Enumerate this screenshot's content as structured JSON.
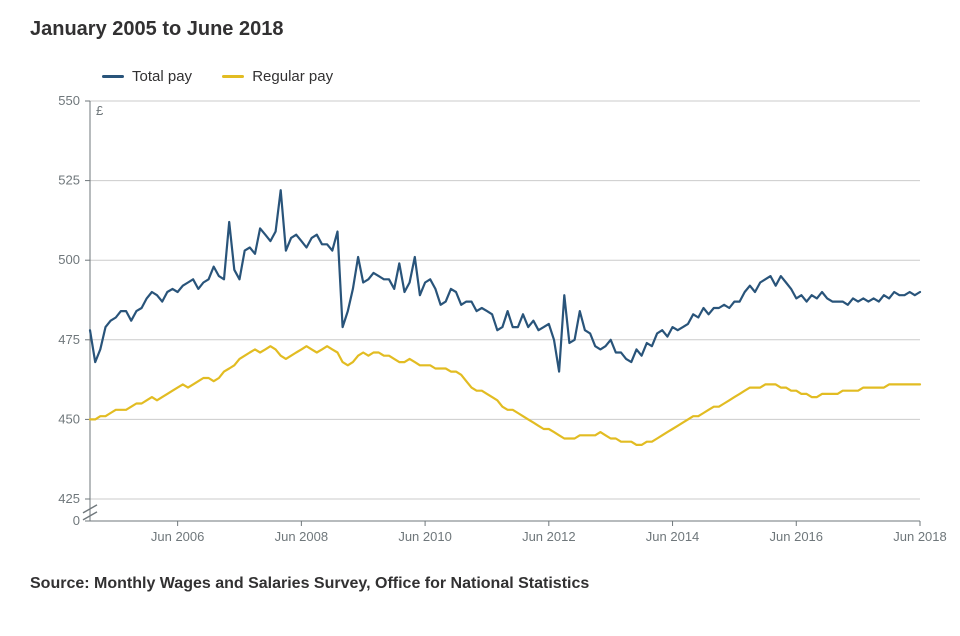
{
  "title": "January 2005 to June 2018",
  "source_label": "Source: Monthly Wages and Salaries Survey, Office for National Statistics",
  "chart": {
    "type": "line",
    "y_unit_label": "£",
    "background_color": "#ffffff",
    "grid_color": "#cbcbcb",
    "axis_color": "#6f777b",
    "tick_fontsize": 13,
    "ylim": [
      0,
      550
    ],
    "y_axis_break": {
      "from": 0,
      "to": 425
    },
    "y_ticks": [
      0,
      425,
      450,
      475,
      500,
      525,
      550
    ],
    "x_ticks": [
      "Jun 2006",
      "Jun 2008",
      "Jun 2010",
      "Jun 2012",
      "Jun 2014",
      "Jun 2016",
      "Jun 2018"
    ],
    "n_points": 162,
    "legend": [
      {
        "label": "Total pay",
        "color": "#29547a"
      },
      {
        "label": "Regular pay",
        "color": "#e2bc22"
      }
    ],
    "series": [
      {
        "name": "Total pay",
        "color": "#29547a",
        "values": [
          478,
          468,
          472,
          479,
          481,
          482,
          484,
          484,
          481,
          484,
          485,
          488,
          490,
          489,
          487,
          490,
          491,
          490,
          492,
          493,
          494,
          491,
          493,
          494,
          498,
          495,
          494,
          512,
          497,
          494,
          503,
          504,
          502,
          510,
          508,
          506,
          509,
          522,
          503,
          507,
          508,
          506,
          504,
          507,
          508,
          505,
          505,
          503,
          509,
          479,
          484,
          491,
          501,
          493,
          494,
          496,
          495,
          494,
          494,
          491,
          499,
          490,
          493,
          501,
          489,
          493,
          494,
          491,
          486,
          487,
          491,
          490,
          486,
          487,
          487,
          484,
          485,
          484,
          483,
          478,
          479,
          484,
          479,
          479,
          483,
          479,
          481,
          478,
          479,
          480,
          475,
          465,
          489,
          474,
          475,
          484,
          478,
          477,
          473,
          472,
          473,
          475,
          471,
          471,
          469,
          468,
          472,
          470,
          474,
          473,
          477,
          478,
          476,
          479,
          478,
          479,
          480,
          483,
          482,
          485,
          483,
          485,
          485,
          486,
          485,
          487,
          487,
          490,
          492,
          490,
          493,
          494,
          495,
          492,
          495,
          493,
          491,
          488,
          489,
          487,
          489,
          488,
          490,
          488,
          487,
          487,
          487,
          486,
          488,
          487,
          488,
          487,
          488,
          487,
          489,
          488,
          490,
          489,
          489,
          490,
          489,
          490
        ]
      },
      {
        "name": "Regular pay",
        "color": "#e2bc22",
        "values": [
          450,
          450,
          451,
          451,
          452,
          453,
          453,
          453,
          454,
          455,
          455,
          456,
          457,
          456,
          457,
          458,
          459,
          460,
          461,
          460,
          461,
          462,
          463,
          463,
          462,
          463,
          465,
          466,
          467,
          469,
          470,
          471,
          472,
          471,
          472,
          473,
          472,
          470,
          469,
          470,
          471,
          472,
          473,
          472,
          471,
          472,
          473,
          472,
          471,
          468,
          467,
          468,
          470,
          471,
          470,
          471,
          471,
          470,
          470,
          469,
          468,
          468,
          469,
          468,
          467,
          467,
          467,
          466,
          466,
          466,
          465,
          465,
          464,
          462,
          460,
          459,
          459,
          458,
          457,
          456,
          454,
          453,
          453,
          452,
          451,
          450,
          449,
          448,
          447,
          447,
          446,
          445,
          444,
          444,
          444,
          445,
          445,
          445,
          445,
          446,
          445,
          444,
          444,
          443,
          443,
          443,
          442,
          442,
          443,
          443,
          444,
          445,
          446,
          447,
          448,
          449,
          450,
          451,
          451,
          452,
          453,
          454,
          454,
          455,
          456,
          457,
          458,
          459,
          460,
          460,
          460,
          461,
          461,
          461,
          460,
          460,
          459,
          459,
          458,
          458,
          457,
          457,
          458,
          458,
          458,
          458,
          459,
          459,
          459,
          459,
          460,
          460,
          460,
          460,
          460,
          461,
          461,
          461,
          461,
          461,
          461,
          461
        ]
      }
    ]
  }
}
